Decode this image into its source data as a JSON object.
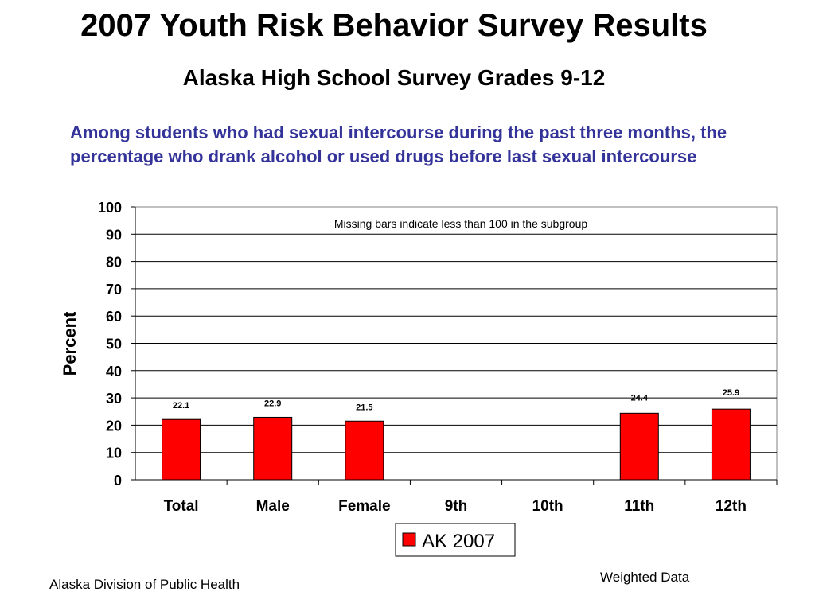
{
  "header": {
    "title": "2007 Youth Risk Behavior Survey Results",
    "subtitle": "Alaska High School Survey Grades 9-12",
    "question": "Among students who had sexual intercourse during the past three months, the percentage who drank alcohol or used drugs before last sexual intercourse"
  },
  "chart_data": {
    "type": "bar",
    "categories": [
      "Total",
      "Male",
      "Female",
      "9th",
      "10th",
      "11th",
      "12th"
    ],
    "series": [
      {
        "name": "AK 2007",
        "values": [
          22.1,
          22.9,
          21.5,
          null,
          null,
          24.4,
          25.9
        ],
        "color": "#ff0000"
      }
    ],
    "data_labels": [
      "22.1",
      "22.9",
      "21.5",
      "",
      "",
      "24.4",
      "25.9"
    ],
    "ylabel": "Percent",
    "ylim": [
      0,
      100
    ],
    "yticks": [
      0,
      10,
      20,
      30,
      40,
      50,
      60,
      70,
      80,
      90,
      100
    ],
    "grid": true,
    "legend": "bottom-center",
    "annotation": "Missing bars indicate less than 100 in the subgroup"
  },
  "footer": {
    "source": "Alaska Division of Public Health",
    "note": "Weighted Data"
  }
}
